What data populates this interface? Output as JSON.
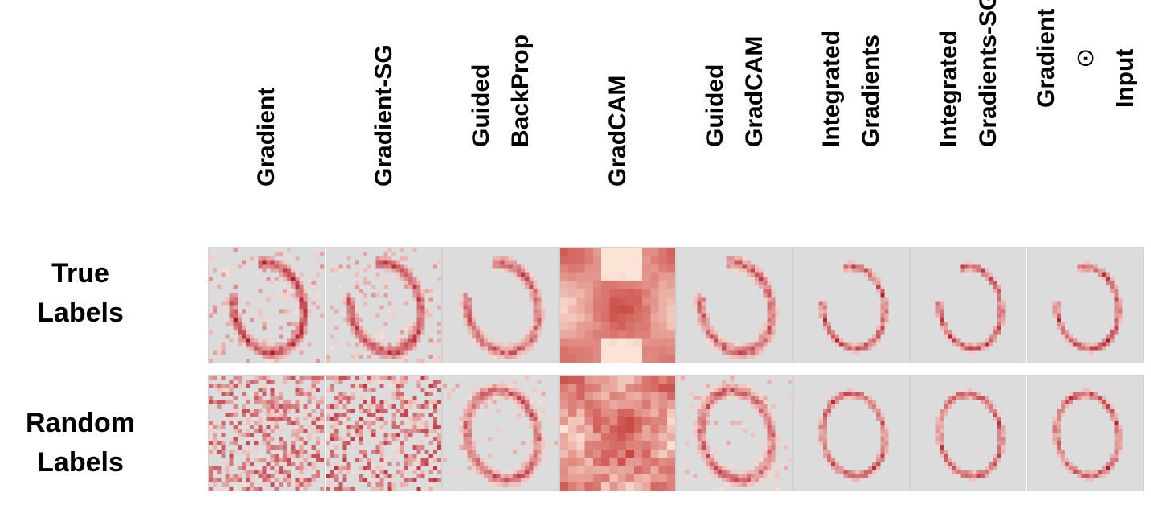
{
  "columns": [
    {
      "lines": [
        "Gradient"
      ]
    },
    {
      "lines": [
        "Gradient-SG"
      ]
    },
    {
      "lines": [
        "Guided",
        "BackProp"
      ]
    },
    {
      "lines": [
        "GradCAM"
      ]
    },
    {
      "lines": [
        "Guided",
        "GradCAM"
      ]
    },
    {
      "lines": [
        "Integrated",
        "Gradients"
      ]
    },
    {
      "lines": [
        "Integrated",
        "Gradients-SG"
      ]
    },
    {
      "lines": [
        "Gradient",
        "⊙",
        "Input"
      ]
    }
  ],
  "rows": [
    {
      "lines": [
        "True",
        "Labels"
      ]
    },
    {
      "lines": [
        "Random",
        "Labels"
      ]
    }
  ],
  "colors": {
    "panel_bg": "#dcdcdc",
    "map_low": "#fde6da",
    "map_high": "#b2182b",
    "gradcam_bg": "#e9826a"
  }
}
